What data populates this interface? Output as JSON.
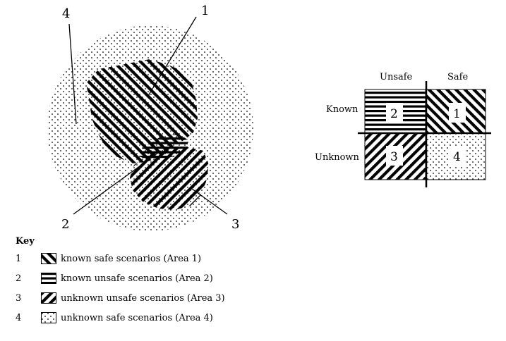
{
  "diagram": {
    "callouts": [
      "1",
      "2",
      "3",
      "4"
    ],
    "quadrant": {
      "columns": [
        "Unsafe",
        "Safe"
      ],
      "rows": [
        "Known",
        "Unknown"
      ],
      "cells": [
        "2",
        "1",
        "3",
        "4"
      ]
    }
  },
  "key": {
    "title": "Key",
    "items": [
      {
        "num": "1",
        "text": "known safe scenarios (Area 1)",
        "pattern": "diag-right"
      },
      {
        "num": "2",
        "text": "known unsafe scenarios (Area 2)",
        "pattern": "horizontal"
      },
      {
        "num": "3",
        "text": "unknown unsafe scenarios (Area 3)",
        "pattern": "diag-left"
      },
      {
        "num": "4",
        "text": "unknown safe scenarios (Area 4)",
        "pattern": "dots"
      }
    ]
  }
}
